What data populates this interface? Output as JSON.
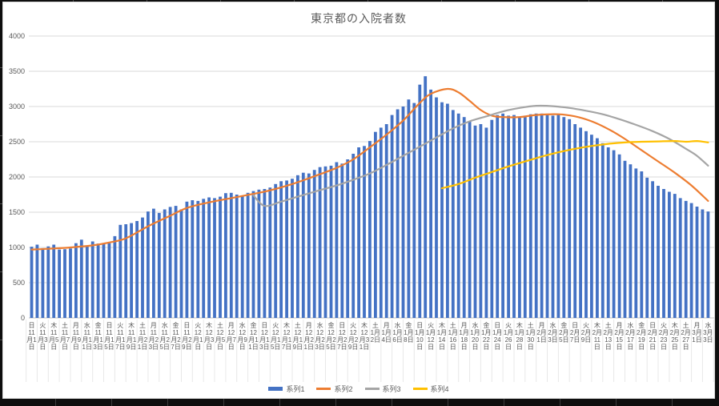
{
  "window": {
    "frame_color": "#0e0e0e",
    "chart_background": "#ffffff"
  },
  "chart_data": {
    "type": "bar",
    "combo": "bar + 3 smooth lines",
    "title": "東京都の入院者数",
    "xlabel": "",
    "ylabel": "",
    "ylim": [
      0,
      4000
    ],
    "yticks": [
      0,
      500,
      1000,
      1500,
      2000,
      2500,
      3000,
      3500,
      4000
    ],
    "grid": "horizontal",
    "legend_position": "bottom",
    "days_total": 123,
    "x_range_note": "daily bars from 11月1日 to 3月3日, axis labels every 2nd day",
    "x_tick_labels": [
      [
        "日",
        "11月1日"
      ],
      [
        "火",
        "11月3日"
      ],
      [
        "木",
        "11月5日"
      ],
      [
        "土",
        "11月7日"
      ],
      [
        "月",
        "11月9日"
      ],
      [
        "水",
        "11月11日"
      ],
      [
        "金",
        "11月13日"
      ],
      [
        "日",
        "11月15日"
      ],
      [
        "火",
        "11月17日"
      ],
      [
        "木",
        "11月19日"
      ],
      [
        "土",
        "11月21日"
      ],
      [
        "月",
        "11月23日"
      ],
      [
        "水",
        "11月25日"
      ],
      [
        "金",
        "11月27日"
      ],
      [
        "日",
        "11月29日"
      ],
      [
        "火",
        "12月1日"
      ],
      [
        "木",
        "12月3日"
      ],
      [
        "土",
        "12月5日"
      ],
      [
        "月",
        "12月7日"
      ],
      [
        "水",
        "12月9日"
      ],
      [
        "金",
        "12月11日"
      ],
      [
        "日",
        "12月13日"
      ],
      [
        "火",
        "12月15日"
      ],
      [
        "木",
        "12月17日"
      ],
      [
        "土",
        "12月19日"
      ],
      [
        "月",
        "12月21日"
      ],
      [
        "水",
        "12月23日"
      ],
      [
        "金",
        "12月25日"
      ],
      [
        "日",
        "12月27日"
      ],
      [
        "火",
        "12月29日"
      ],
      [
        "木",
        "12月31日"
      ],
      [
        "土",
        "1月2日"
      ],
      [
        "月",
        "1月4日"
      ],
      [
        "水",
        "1月6日"
      ],
      [
        "金",
        "1月8日"
      ],
      [
        "日",
        "1月10日"
      ],
      [
        "火",
        "1月12日"
      ],
      [
        "木",
        "1月14日"
      ],
      [
        "土",
        "1月16日"
      ],
      [
        "月",
        "1月18日"
      ],
      [
        "水",
        "1月20日"
      ],
      [
        "金",
        "1月22日"
      ],
      [
        "日",
        "1月24日"
      ],
      [
        "火",
        "1月26日"
      ],
      [
        "木",
        "1月28日"
      ],
      [
        "土",
        "1月30日"
      ],
      [
        "月",
        "2月1日"
      ],
      [
        "水",
        "2月3日"
      ],
      [
        "金",
        "2月5日"
      ],
      [
        "日",
        "2月7日"
      ],
      [
        "火",
        "2月9日"
      ],
      [
        "木",
        "2月11日"
      ],
      [
        "土",
        "2月13日"
      ],
      [
        "月",
        "2月15日"
      ],
      [
        "水",
        "2月17日"
      ],
      [
        "金",
        "2月19日"
      ],
      [
        "日",
        "2月21日"
      ],
      [
        "火",
        "2月23日"
      ],
      [
        "木",
        "2月25日"
      ],
      [
        "土",
        "2月27日"
      ],
      [
        "月",
        "3月1日"
      ],
      [
        "水",
        "3月3日"
      ]
    ],
    "series": [
      {
        "name": "系列1",
        "type": "bar",
        "color": "#4472C4",
        "values": [
          1010,
          1040,
          990,
          1015,
          1040,
          970,
          975,
          985,
          1060,
          1110,
          1015,
          1085,
          1055,
          1045,
          1060,
          1160,
          1320,
          1330,
          1345,
          1375,
          1425,
          1510,
          1550,
          1490,
          1540,
          1575,
          1590,
          1540,
          1650,
          1670,
          1660,
          1690,
          1710,
          1700,
          1720,
          1770,
          1775,
          1750,
          1730,
          1775,
          1800,
          1820,
          1830,
          1850,
          1900,
          1940,
          1950,
          1975,
          2025,
          2060,
          2050,
          2100,
          2140,
          2150,
          2160,
          2210,
          2190,
          2250,
          2330,
          2420,
          2440,
          2510,
          2640,
          2700,
          2750,
          2880,
          2960,
          3000,
          3100,
          3050,
          3310,
          3430,
          3240,
          3130,
          3060,
          3040,
          2950,
          2900,
          2850,
          2790,
          2730,
          2750,
          2700,
          2810,
          2880,
          2900,
          2870,
          2880,
          2850,
          2870,
          2890,
          2900,
          2900,
          2880,
          2870,
          2890,
          2850,
          2820,
          2750,
          2700,
          2650,
          2600,
          2550,
          2480,
          2420,
          2380,
          2320,
          2230,
          2180,
          2120,
          2080,
          1990,
          1940,
          1875,
          1830,
          1790,
          1760,
          1700,
          1660,
          1630,
          1580,
          1540,
          1510
        ]
      },
      {
        "name": "系列2",
        "type": "line",
        "color": "#ED7D31",
        "points": [
          [
            0,
            970
          ],
          [
            4,
            985
          ],
          [
            7,
            1000
          ],
          [
            11,
            1030
          ],
          [
            14,
            1070
          ],
          [
            17,
            1130
          ],
          [
            21,
            1300
          ],
          [
            25,
            1450
          ],
          [
            28,
            1560
          ],
          [
            32,
            1640
          ],
          [
            36,
            1700
          ],
          [
            40,
            1760
          ],
          [
            43,
            1810
          ],
          [
            47,
            1900
          ],
          [
            51,
            2010
          ],
          [
            55,
            2130
          ],
          [
            58,
            2250
          ],
          [
            61,
            2420
          ],
          [
            64,
            2600
          ],
          [
            67,
            2800
          ],
          [
            70,
            3050
          ],
          [
            72,
            3180
          ],
          [
            75,
            3250
          ],
          [
            77,
            3200
          ],
          [
            79,
            3080
          ],
          [
            81,
            2950
          ],
          [
            83,
            2870
          ],
          [
            85,
            2850
          ],
          [
            88,
            2850
          ],
          [
            91,
            2880
          ],
          [
            95,
            2890
          ],
          [
            98,
            2860
          ],
          [
            101,
            2790
          ],
          [
            104,
            2680
          ],
          [
            107,
            2540
          ],
          [
            110,
            2380
          ],
          [
            113,
            2220
          ],
          [
            116,
            2060
          ],
          [
            119,
            1880
          ],
          [
            122,
            1660
          ]
        ]
      },
      {
        "name": "系列3",
        "type": "line",
        "color": "#A5A5A5",
        "points": [
          [
            40,
            1740
          ],
          [
            42,
            1590
          ],
          [
            45,
            1650
          ],
          [
            48,
            1720
          ],
          [
            51,
            1790
          ],
          [
            55,
            1880
          ],
          [
            58,
            1960
          ],
          [
            61,
            2050
          ],
          [
            64,
            2170
          ],
          [
            67,
            2300
          ],
          [
            70,
            2430
          ],
          [
            73,
            2560
          ],
          [
            76,
            2690
          ],
          [
            79,
            2790
          ],
          [
            82,
            2860
          ],
          [
            85,
            2930
          ],
          [
            88,
            2980
          ],
          [
            91,
            3010
          ],
          [
            94,
            3005
          ],
          [
            97,
            2980
          ],
          [
            100,
            2940
          ],
          [
            103,
            2890
          ],
          [
            106,
            2820
          ],
          [
            109,
            2740
          ],
          [
            112,
            2650
          ],
          [
            115,
            2540
          ],
          [
            118,
            2400
          ],
          [
            120,
            2300
          ],
          [
            122,
            2160
          ]
        ]
      },
      {
        "name": "系列4",
        "type": "line",
        "color": "#FFC000",
        "points": [
          [
            74,
            1840
          ],
          [
            77,
            1900
          ],
          [
            80,
            1990
          ],
          [
            83,
            2070
          ],
          [
            86,
            2150
          ],
          [
            89,
            2220
          ],
          [
            92,
            2290
          ],
          [
            95,
            2350
          ],
          [
            98,
            2400
          ],
          [
            101,
            2440
          ],
          [
            104,
            2470
          ],
          [
            107,
            2490
          ],
          [
            110,
            2500
          ],
          [
            113,
            2505
          ],
          [
            116,
            2510
          ],
          [
            118,
            2500
          ],
          [
            120,
            2510
          ],
          [
            122,
            2490
          ]
        ]
      }
    ],
    "colors": {
      "grid": "#d9d9d9",
      "axis_zero_line": "#c6c6c6",
      "axis_text": "#595959",
      "title_text": "#595959",
      "category_separator": "#e8e8e8"
    }
  }
}
